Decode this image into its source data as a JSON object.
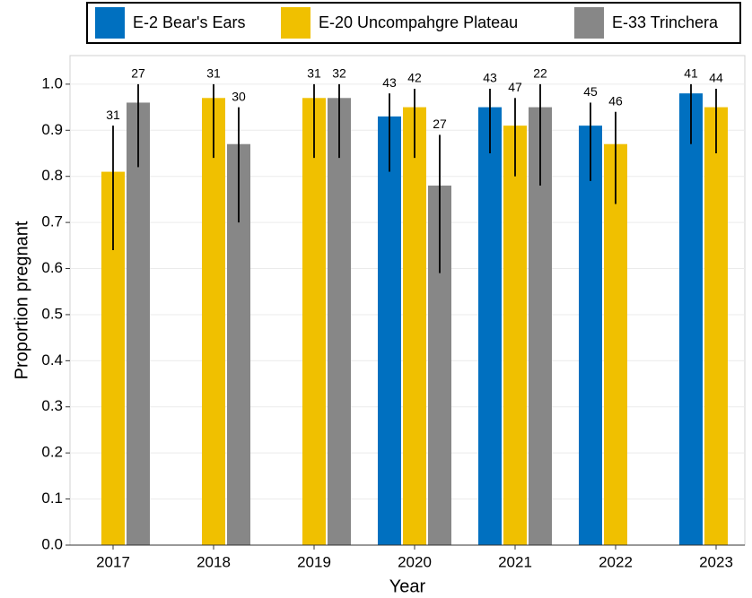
{
  "chart_data": {
    "type": "bar",
    "x_label": "Year",
    "y_label": "Proportion pregnant",
    "categories": [
      "2017",
      "2018",
      "2019",
      "2020",
      "2021",
      "2022",
      "2023"
    ],
    "series": [
      {
        "name": "E-2 Bear's Ears",
        "color": "#0070c0",
        "values": [
          null,
          null,
          null,
          0.93,
          0.95,
          0.91,
          0.98
        ],
        "ci_low": [
          null,
          null,
          null,
          0.81,
          0.85,
          0.79,
          0.87
        ],
        "ci_high": [
          null,
          null,
          null,
          0.98,
          0.99,
          0.96,
          1.0
        ],
        "n": [
          null,
          null,
          null,
          43,
          43,
          45,
          41
        ]
      },
      {
        "name": "E-20 Uncompahgre Plateau",
        "color": "#f0c000",
        "values": [
          0.81,
          0.97,
          0.97,
          0.95,
          0.91,
          0.87,
          0.95
        ],
        "ci_low": [
          0.64,
          0.84,
          0.84,
          0.84,
          0.8,
          0.74,
          0.85
        ],
        "ci_high": [
          0.91,
          1.0,
          1.0,
          0.99,
          0.97,
          0.94,
          0.99
        ],
        "n": [
          31,
          31,
          31,
          42,
          47,
          46,
          44
        ]
      },
      {
        "name": "E-33 Trinchera",
        "color": "#878787",
        "values": [
          0.96,
          0.87,
          0.97,
          0.78,
          0.95,
          null,
          null
        ],
        "ci_low": [
          0.82,
          0.7,
          0.84,
          0.59,
          0.78,
          null,
          null
        ],
        "ci_high": [
          1.0,
          0.95,
          1.0,
          0.89,
          1.0,
          null,
          null
        ],
        "n": [
          27,
          30,
          32,
          27,
          22,
          null,
          null
        ]
      }
    ],
    "ylim": [
      0,
      1.062
    ],
    "yticks": [
      {
        "value": 0,
        "label": "0.0"
      },
      0.1,
      0.2,
      0.3,
      0.4,
      0.5,
      0.6,
      0.7,
      0.8,
      0.9,
      {
        "value": 1,
        "label": "1.0"
      }
    ],
    "grid": true,
    "legend": "top"
  }
}
